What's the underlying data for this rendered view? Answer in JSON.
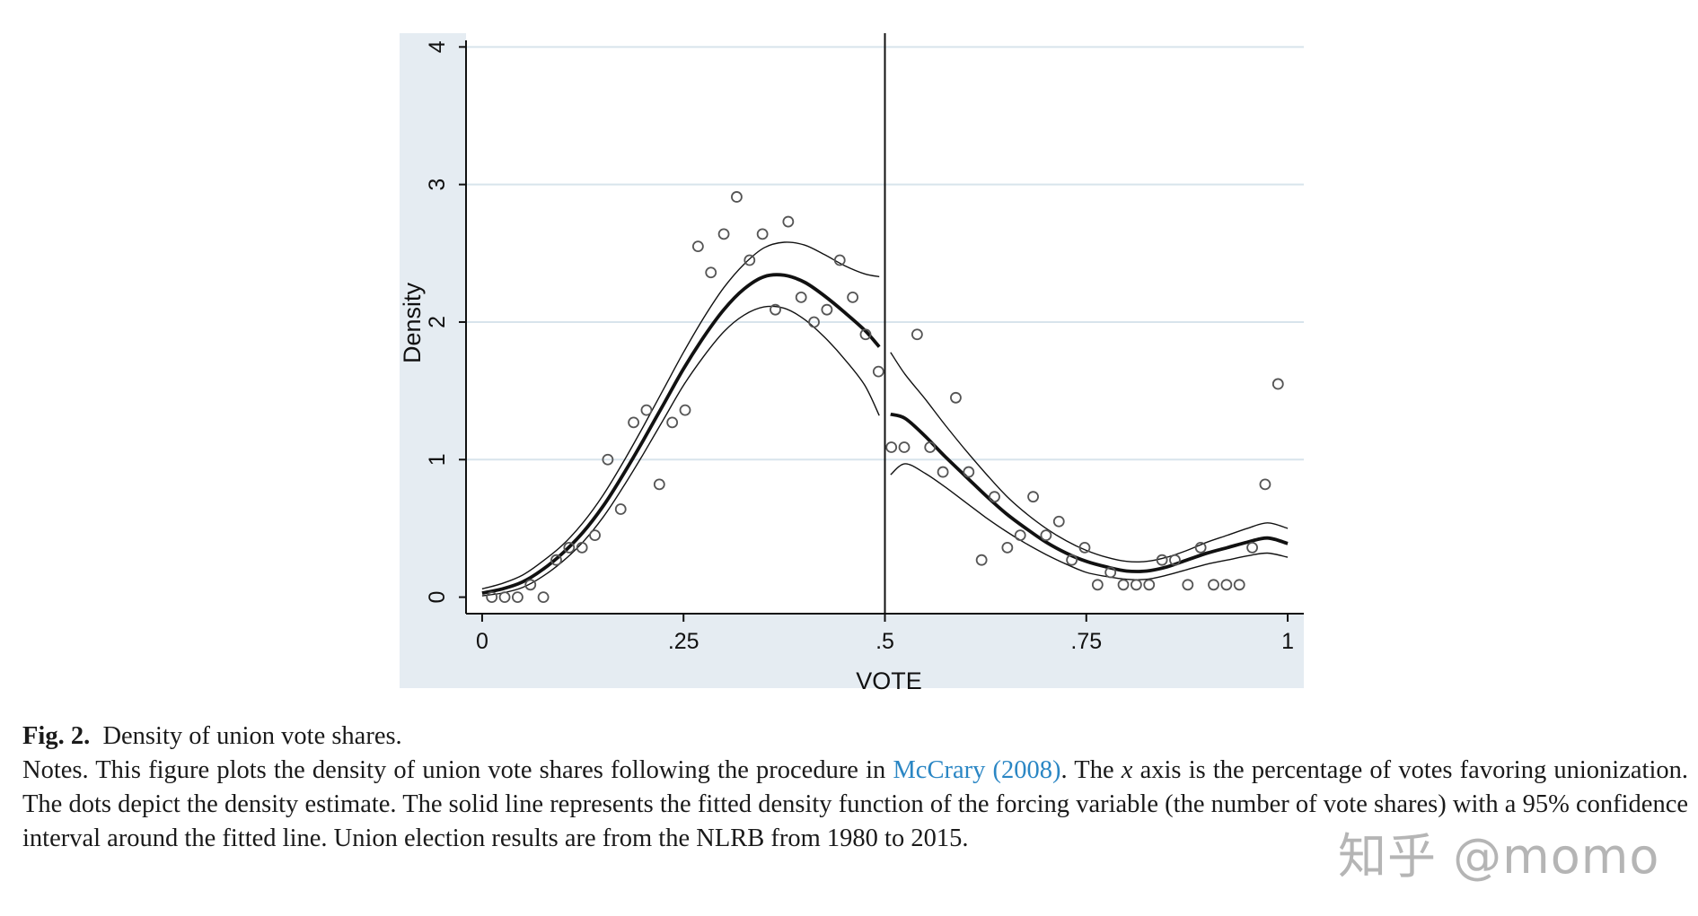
{
  "chart_data": {
    "type": "scatter",
    "xlabel": "VOTE",
    "ylabel": "Density",
    "xlim": [
      -0.02,
      1.02
    ],
    "ylim": [
      -0.12,
      4.1
    ],
    "xticks": [
      0,
      0.25,
      0.5,
      0.75,
      1
    ],
    "xtick_labels": [
      "0",
      ".25",
      ".5",
      ".75",
      "1"
    ],
    "yticks": [
      0,
      1,
      2,
      3,
      4
    ],
    "ytick_labels": [
      "0",
      "1",
      "2",
      "3",
      "4"
    ],
    "cutoff": 0.5,
    "grid": "horizontal",
    "colors": {
      "background": "#e5ecf2",
      "plot": "#ffffff",
      "grid": "#d8e4ec",
      "ink": "#111111",
      "points": "#555555"
    },
    "points": [
      [
        0.012,
        0.0
      ],
      [
        0.028,
        0.0
      ],
      [
        0.044,
        0.0
      ],
      [
        0.06,
        0.09
      ],
      [
        0.076,
        0.0
      ],
      [
        0.092,
        0.27
      ],
      [
        0.108,
        0.36
      ],
      [
        0.124,
        0.36
      ],
      [
        0.14,
        0.45
      ],
      [
        0.156,
        1.0
      ],
      [
        0.172,
        0.64
      ],
      [
        0.188,
        1.27
      ],
      [
        0.204,
        1.36
      ],
      [
        0.22,
        0.82
      ],
      [
        0.236,
        1.27
      ],
      [
        0.252,
        1.36
      ],
      [
        0.268,
        2.55
      ],
      [
        0.284,
        2.36
      ],
      [
        0.3,
        2.64
      ],
      [
        0.316,
        2.91
      ],
      [
        0.332,
        2.45
      ],
      [
        0.348,
        2.64
      ],
      [
        0.364,
        2.09
      ],
      [
        0.38,
        2.73
      ],
      [
        0.396,
        2.18
      ],
      [
        0.412,
        2.0
      ],
      [
        0.428,
        2.09
      ],
      [
        0.444,
        2.45
      ],
      [
        0.46,
        2.18
      ],
      [
        0.476,
        1.91
      ],
      [
        0.492,
        1.64
      ],
      [
        0.508,
        1.09
      ],
      [
        0.524,
        1.09
      ],
      [
        0.54,
        1.91
      ],
      [
        0.556,
        1.09
      ],
      [
        0.572,
        0.91
      ],
      [
        0.588,
        1.45
      ],
      [
        0.604,
        0.91
      ],
      [
        0.62,
        0.27
      ],
      [
        0.636,
        0.73
      ],
      [
        0.652,
        0.36
      ],
      [
        0.668,
        0.45
      ],
      [
        0.684,
        0.73
      ],
      [
        0.7,
        0.45
      ],
      [
        0.716,
        0.55
      ],
      [
        0.732,
        0.27
      ],
      [
        0.748,
        0.36
      ],
      [
        0.764,
        0.09
      ],
      [
        0.78,
        0.18
      ],
      [
        0.796,
        0.09
      ],
      [
        0.812,
        0.09
      ],
      [
        0.828,
        0.09
      ],
      [
        0.844,
        0.27
      ],
      [
        0.86,
        0.27
      ],
      [
        0.876,
        0.09
      ],
      [
        0.892,
        0.36
      ],
      [
        0.908,
        0.09
      ],
      [
        0.924,
        0.09
      ],
      [
        0.94,
        0.09
      ],
      [
        0.956,
        0.36
      ],
      [
        0.972,
        0.82
      ],
      [
        0.988,
        1.55
      ]
    ],
    "fit_left": {
      "x": [
        0.0,
        0.025,
        0.05,
        0.075,
        0.1,
        0.125,
        0.15,
        0.175,
        0.2,
        0.225,
        0.25,
        0.275,
        0.3,
        0.325,
        0.35,
        0.375,
        0.4,
        0.425,
        0.45,
        0.475,
        0.5
      ],
      "y": [
        0.03,
        0.06,
        0.11,
        0.2,
        0.32,
        0.47,
        0.66,
        0.89,
        1.14,
        1.4,
        1.66,
        1.89,
        2.09,
        2.24,
        2.33,
        2.34,
        2.29,
        2.19,
        2.07,
        1.94,
        1.82
      ],
      "lower": [
        0.01,
        0.03,
        0.07,
        0.15,
        0.26,
        0.4,
        0.58,
        0.8,
        1.04,
        1.29,
        1.54,
        1.75,
        1.93,
        2.05,
        2.11,
        2.1,
        2.02,
        1.89,
        1.73,
        1.54,
        1.32
      ],
      "upper": [
        0.06,
        0.1,
        0.16,
        0.26,
        0.38,
        0.54,
        0.74,
        0.98,
        1.24,
        1.51,
        1.78,
        2.03,
        2.25,
        2.42,
        2.54,
        2.58,
        2.56,
        2.49,
        2.41,
        2.35,
        2.33
      ]
    },
    "fit_right": {
      "x": [
        0.5,
        0.525,
        0.55,
        0.575,
        0.6,
        0.625,
        0.65,
        0.675,
        0.7,
        0.725,
        0.75,
        0.775,
        0.8,
        0.825,
        0.85,
        0.875,
        0.9,
        0.925,
        0.95,
        0.975,
        1.0
      ],
      "y": [
        1.33,
        1.3,
        1.17,
        1.02,
        0.88,
        0.74,
        0.61,
        0.5,
        0.4,
        0.32,
        0.26,
        0.22,
        0.19,
        0.19,
        0.22,
        0.27,
        0.32,
        0.36,
        0.4,
        0.43,
        0.39
      ],
      "lower": [
        0.89,
        0.97,
        0.9,
        0.8,
        0.69,
        0.58,
        0.48,
        0.39,
        0.31,
        0.24,
        0.18,
        0.15,
        0.13,
        0.13,
        0.16,
        0.2,
        0.24,
        0.27,
        0.3,
        0.32,
        0.29
      ],
      "upper": [
        1.78,
        1.62,
        1.44,
        1.25,
        1.07,
        0.9,
        0.74,
        0.61,
        0.5,
        0.41,
        0.34,
        0.29,
        0.26,
        0.26,
        0.29,
        0.34,
        0.4,
        0.45,
        0.5,
        0.54,
        0.5
      ]
    }
  },
  "caption": {
    "label": "Fig. 2.",
    "title": "Density of union vote shares.",
    "notes_before": "Notes. This figure plots the density of union vote shares following the procedure in",
    "citation": "McCrary (2008)",
    "notes_mid": ". The",
    "notes_x": "x",
    "notes_after": "axis is the percentage of votes favoring unionization. The dots depict the density estimate. The solid line represents the fitted density function of the forcing variable (the number of vote shares) with a 95% confidence interval around the fitted line. Union election results are from the NLRB from 1980 to 2015."
  },
  "watermark": "知乎 @momo"
}
